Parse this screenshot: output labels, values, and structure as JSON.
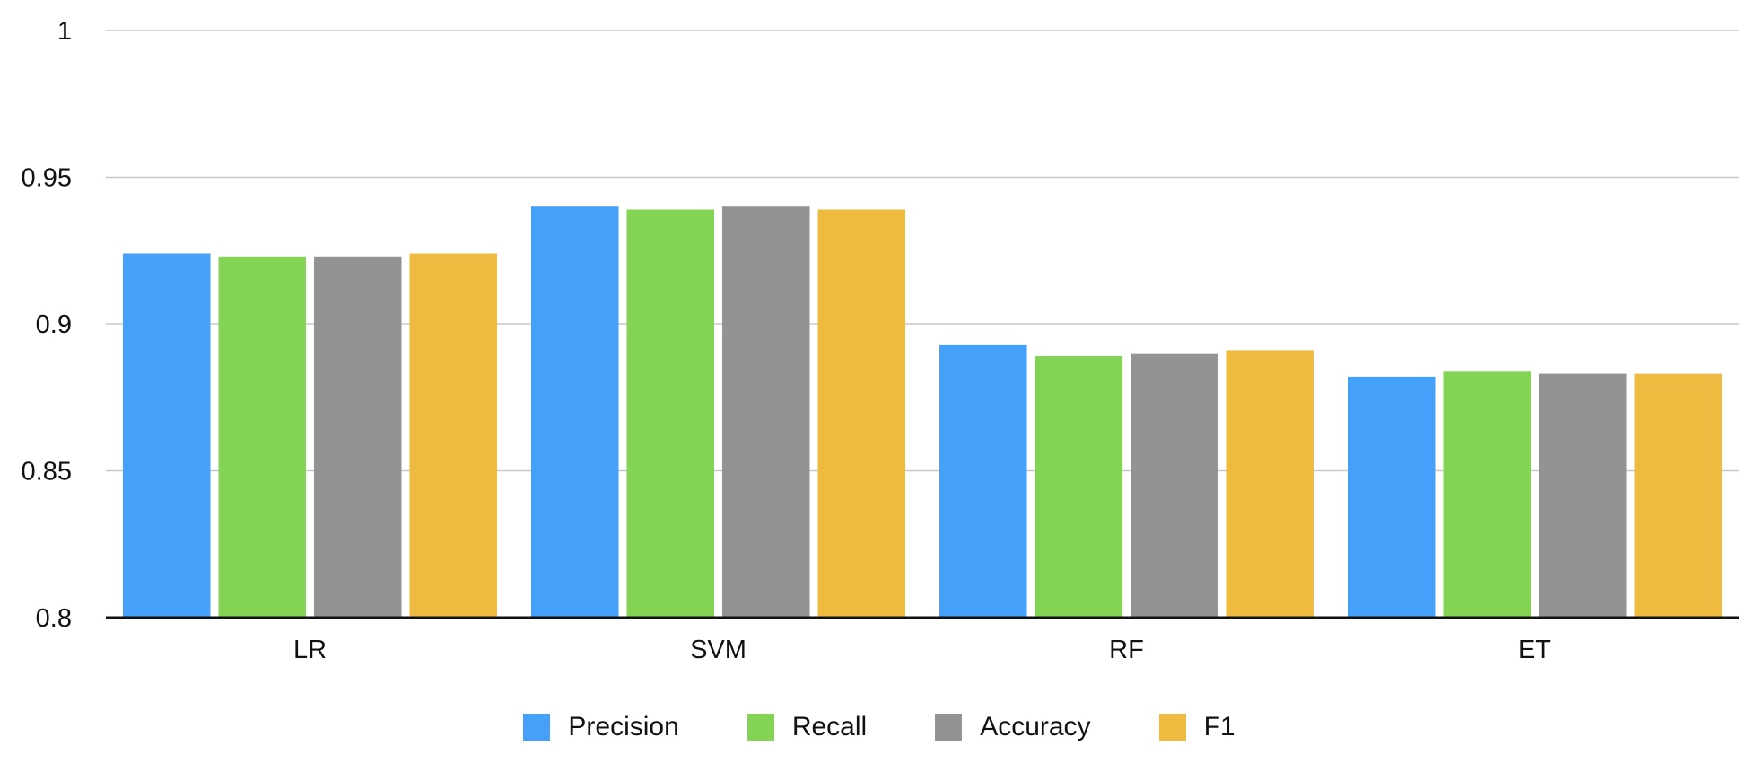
{
  "chart_data": {
    "type": "bar",
    "title": "",
    "xlabel": "",
    "ylabel": "",
    "categories": [
      "LR",
      "SVM",
      "RF",
      "ET"
    ],
    "series": [
      {
        "name": "Precision",
        "color": "#44A0F8",
        "values": [
          0.924,
          0.94,
          0.893,
          0.882
        ]
      },
      {
        "name": "Recall",
        "color": "#83D454",
        "values": [
          0.923,
          0.939,
          0.889,
          0.884
        ]
      },
      {
        "name": "Accuracy",
        "color": "#939393",
        "values": [
          0.923,
          0.94,
          0.89,
          0.883
        ]
      },
      {
        "name": "F1",
        "color": "#EEBA3F",
        "values": [
          0.924,
          0.939,
          0.891,
          0.883
        ]
      }
    ],
    "ylim": [
      0.8,
      1
    ],
    "yticks": [
      "0.8",
      "0.85",
      "0.9",
      "0.95",
      "1"
    ],
    "grid": true,
    "legend_position": "bottom"
  }
}
